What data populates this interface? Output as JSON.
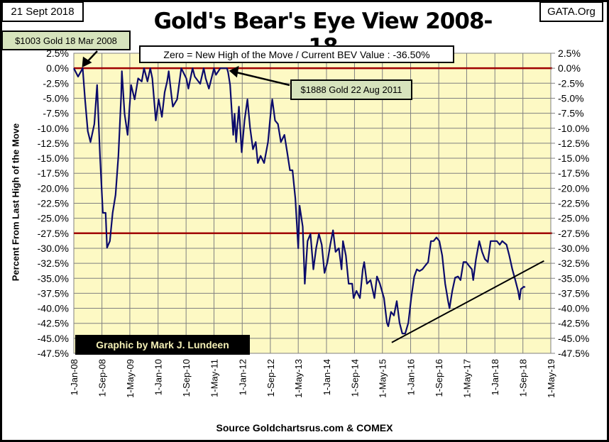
{
  "header": {
    "date_label": "21 Sept 2018",
    "site_label": "GATA.Org",
    "credit": "Graphic by Mark J. Lundeen",
    "source": "Source Goldchartsrus.com & COMEX"
  },
  "colors": {
    "plot_bg": "#fdf9c4",
    "line": "#0b0b6b",
    "ref_line": "#a00000",
    "grid": "#808080",
    "annotation_bg": "#d6e3bc"
  },
  "chart_data": {
    "type": "line",
    "title": "Gold's Bear's Eye View 2008-18",
    "ylabel": "Percent  From Last High of the Move",
    "xlabel": "",
    "ylim": [
      -47.5,
      2.5
    ],
    "xlim": [
      "2008-01-01",
      "2019-05-01"
    ],
    "grid": true,
    "y_ticks": [
      "2.5%",
      "0.0%",
      "-2.5%",
      "-5.0%",
      "-7.5%",
      "-10.0%",
      "-12.5%",
      "-15.0%",
      "-17.5%",
      "-20.0%",
      "-22.5%",
      "-25.0%",
      "-27.5%",
      "-30.0%",
      "-32.5%",
      "-35.0%",
      "-37.5%",
      "-40.0%",
      "-42.5%",
      "-45.0%",
      "-47.5%"
    ],
    "x_ticks": [
      "1-Jan-08",
      "1-Sep-08",
      "1-May-09",
      "1-Jan-10",
      "1-Sep-10",
      "1-May-11",
      "1-Jan-12",
      "1-Sep-12",
      "1-May-13",
      "1-Jan-14",
      "1-Sep-14",
      "1-May-15",
      "1-Jan-16",
      "1-Sep-16",
      "1-May-17",
      "1-Jan-18",
      "1-Sep-18",
      "1-May-19"
    ],
    "x_tick_dates": [
      "2008-01-01",
      "2008-09-01",
      "2009-05-01",
      "2010-01-01",
      "2010-09-01",
      "2011-05-01",
      "2012-01-01",
      "2012-09-01",
      "2013-05-01",
      "2014-01-01",
      "2014-09-01",
      "2015-05-01",
      "2016-01-01",
      "2016-09-01",
      "2017-05-01",
      "2018-01-01",
      "2018-09-01",
      "2019-05-01"
    ],
    "reference_lines": [
      0.0,
      -27.5
    ],
    "trendline": [
      [
        "2015-07-21",
        -45.7
      ],
      [
        "2019-03-03",
        -32.1
      ]
    ],
    "annotations": {
      "zero_note": "Zero = New High of the Move / Current  BEV Value : -36.50%",
      "high_2008": "$1003  Gold 18  Mar  2008",
      "high_2011": "$1888  Gold 22  Aug  2011"
    },
    "series": [
      {
        "points": [
          [
            "2008-01-01",
            0
          ],
          [
            "2008-02-07",
            -1.4
          ],
          [
            "2008-03-18",
            0
          ],
          [
            "2008-04-07",
            -5.2
          ],
          [
            "2008-05-01",
            -10.5
          ],
          [
            "2008-05-25",
            -12.3
          ],
          [
            "2008-06-27",
            -9.3
          ],
          [
            "2008-07-21",
            -2.8
          ],
          [
            "2008-08-15",
            -14.6
          ],
          [
            "2008-09-09",
            -24.1
          ],
          [
            "2008-10-03",
            -24.1
          ],
          [
            "2008-10-15",
            -29.9
          ],
          [
            "2008-11-09",
            -28.8
          ],
          [
            "2008-12-03",
            -24.1
          ],
          [
            "2008-12-28",
            -21.1
          ],
          [
            "2009-01-22",
            -14.6
          ],
          [
            "2009-02-15",
            -4.6
          ],
          [
            "2009-02-21",
            -0.5
          ],
          [
            "2009-03-16",
            -7.6
          ],
          [
            "2009-04-12",
            -11.1
          ],
          [
            "2009-05-12",
            -2.8
          ],
          [
            "2009-06-12",
            -5.2
          ],
          [
            "2009-07-12",
            -1.7
          ],
          [
            "2009-08-12",
            -2.2
          ],
          [
            "2009-09-01",
            0
          ],
          [
            "2009-10-01",
            -2.2
          ],
          [
            "2009-10-25",
            0
          ],
          [
            "2009-11-12",
            -1.7
          ],
          [
            "2009-12-12",
            -8.7
          ],
          [
            "2010-01-06",
            -5.2
          ],
          [
            "2010-02-03",
            -8.1
          ],
          [
            "2010-02-27",
            -4.0
          ],
          [
            "2010-03-21",
            -2.2
          ],
          [
            "2010-04-03",
            -0.5
          ],
          [
            "2010-04-27",
            -4.6
          ],
          [
            "2010-05-09",
            -6.4
          ],
          [
            "2010-06-15",
            -5.2
          ],
          [
            "2010-07-21",
            0
          ],
          [
            "2010-09-03",
            -1.7
          ],
          [
            "2010-09-21",
            -3.4
          ],
          [
            "2010-10-27",
            0
          ],
          [
            "2010-11-15",
            -1.4
          ],
          [
            "2011-01-01",
            -2.6
          ],
          [
            "2011-02-01",
            0
          ],
          [
            "2011-02-18",
            -1.7
          ],
          [
            "2011-03-18",
            -3.4
          ],
          [
            "2011-05-01",
            0
          ],
          [
            "2011-05-18",
            -1.1
          ],
          [
            "2011-06-25",
            0
          ],
          [
            "2011-07-25",
            0
          ],
          [
            "2011-08-22",
            0
          ],
          [
            "2011-09-01",
            -0.7
          ],
          [
            "2011-09-18",
            -2.8
          ],
          [
            "2011-10-15",
            -11.1
          ],
          [
            "2011-10-27",
            -7.6
          ],
          [
            "2011-11-09",
            -12.3
          ],
          [
            "2011-12-03",
            -6.4
          ],
          [
            "2011-12-27",
            -14.0
          ],
          [
            "2012-01-21",
            -8.7
          ],
          [
            "2012-02-15",
            -5.2
          ],
          [
            "2012-03-09",
            -9.9
          ],
          [
            "2012-04-03",
            -13.5
          ],
          [
            "2012-04-27",
            -12.3
          ],
          [
            "2012-05-15",
            -15.8
          ],
          [
            "2012-06-09",
            -14.6
          ],
          [
            "2012-07-09",
            -15.8
          ],
          [
            "2012-08-12",
            -12.3
          ],
          [
            "2012-09-06",
            -7.0
          ],
          [
            "2012-09-18",
            -5.2
          ],
          [
            "2012-10-12",
            -8.7
          ],
          [
            "2012-11-06",
            -9.3
          ],
          [
            "2012-12-01",
            -12.3
          ],
          [
            "2013-01-01",
            -11.1
          ],
          [
            "2013-01-25",
            -14.0
          ],
          [
            "2013-02-18",
            -17.0
          ],
          [
            "2013-03-12",
            -17.0
          ],
          [
            "2013-04-06",
            -21.7
          ],
          [
            "2013-05-01",
            -30.0
          ],
          [
            "2013-05-13",
            -22.9
          ],
          [
            "2013-06-09",
            -26.4
          ],
          [
            "2013-06-27",
            -35.9
          ],
          [
            "2013-07-21",
            -28.8
          ],
          [
            "2013-08-15",
            -27.6
          ],
          [
            "2013-09-09",
            -33.5
          ],
          [
            "2013-10-03",
            -30.0
          ],
          [
            "2013-10-27",
            -27.6
          ],
          [
            "2013-11-21",
            -29.4
          ],
          [
            "2013-12-15",
            -34.1
          ],
          [
            "2014-01-09",
            -32.3
          ],
          [
            "2014-02-03",
            -29.4
          ],
          [
            "2014-02-27",
            -27.0
          ],
          [
            "2014-03-21",
            -30.6
          ],
          [
            "2014-04-18",
            -30.0
          ],
          [
            "2014-05-12",
            -33.5
          ],
          [
            "2014-05-24",
            -28.8
          ],
          [
            "2014-06-18",
            -31.2
          ],
          [
            "2014-07-12",
            -35.9
          ],
          [
            "2014-08-12",
            -35.9
          ],
          [
            "2014-08-24",
            -38.3
          ],
          [
            "2014-09-18",
            -37.1
          ],
          [
            "2014-10-18",
            -38.3
          ],
          [
            "2014-11-12",
            -33.5
          ],
          [
            "2014-11-24",
            -32.3
          ],
          [
            "2014-12-18",
            -35.9
          ],
          [
            "2015-01-18",
            -35.3
          ],
          [
            "2015-02-21",
            -38.3
          ],
          [
            "2015-03-15",
            -34.7
          ],
          [
            "2015-04-09",
            -35.9
          ],
          [
            "2015-05-15",
            -38.3
          ],
          [
            "2015-06-09",
            -42.4
          ],
          [
            "2015-06-21",
            -43.0
          ],
          [
            "2015-07-15",
            -40.6
          ],
          [
            "2015-08-09",
            -41.2
          ],
          [
            "2015-09-03",
            -38.8
          ],
          [
            "2015-09-27",
            -42.4
          ],
          [
            "2015-10-21",
            -44.2
          ],
          [
            "2015-11-15",
            -44.2
          ],
          [
            "2015-12-12",
            -42.4
          ],
          [
            "2016-01-06",
            -38.3
          ],
          [
            "2016-02-01",
            -34.7
          ],
          [
            "2016-02-24",
            -33.5
          ],
          [
            "2016-03-18",
            -33.8
          ],
          [
            "2016-04-12",
            -33.5
          ],
          [
            "2016-05-06",
            -32.9
          ],
          [
            "2016-06-01",
            -32.3
          ],
          [
            "2016-06-25",
            -28.8
          ],
          [
            "2016-07-18",
            -28.8
          ],
          [
            "2016-08-12",
            -28.2
          ],
          [
            "2016-09-06",
            -28.8
          ],
          [
            "2016-10-01",
            -31.2
          ],
          [
            "2016-10-27",
            -35.9
          ],
          [
            "2016-11-21",
            -38.8
          ],
          [
            "2016-12-03",
            -40.0
          ],
          [
            "2016-12-27",
            -37.1
          ],
          [
            "2017-01-21",
            -34.9
          ],
          [
            "2017-02-15",
            -34.7
          ],
          [
            "2017-03-09",
            -35.3
          ],
          [
            "2017-04-03",
            -32.3
          ],
          [
            "2017-04-27",
            -32.3
          ],
          [
            "2017-05-21",
            -32.9
          ],
          [
            "2017-06-15",
            -33.5
          ],
          [
            "2017-06-27",
            -35.3
          ],
          [
            "2017-07-21",
            -31.8
          ],
          [
            "2017-08-18",
            -28.8
          ],
          [
            "2017-09-12",
            -30.6
          ],
          [
            "2017-10-06",
            -31.8
          ],
          [
            "2017-11-01",
            -32.3
          ],
          [
            "2017-11-25",
            -28.8
          ],
          [
            "2017-12-25",
            -28.8
          ],
          [
            "2018-01-18",
            -28.8
          ],
          [
            "2018-02-12",
            -29.4
          ],
          [
            "2018-03-06",
            -28.8
          ],
          [
            "2018-04-12",
            -29.4
          ],
          [
            "2018-05-06",
            -31.2
          ],
          [
            "2018-06-01",
            -33.5
          ],
          [
            "2018-06-27",
            -35.3
          ],
          [
            "2018-07-21",
            -37.1
          ],
          [
            "2018-08-03",
            -38.5
          ],
          [
            "2018-08-15",
            -36.8
          ],
          [
            "2018-09-09",
            -36.4
          ],
          [
            "2018-09-21",
            -36.5
          ]
        ]
      }
    ]
  }
}
